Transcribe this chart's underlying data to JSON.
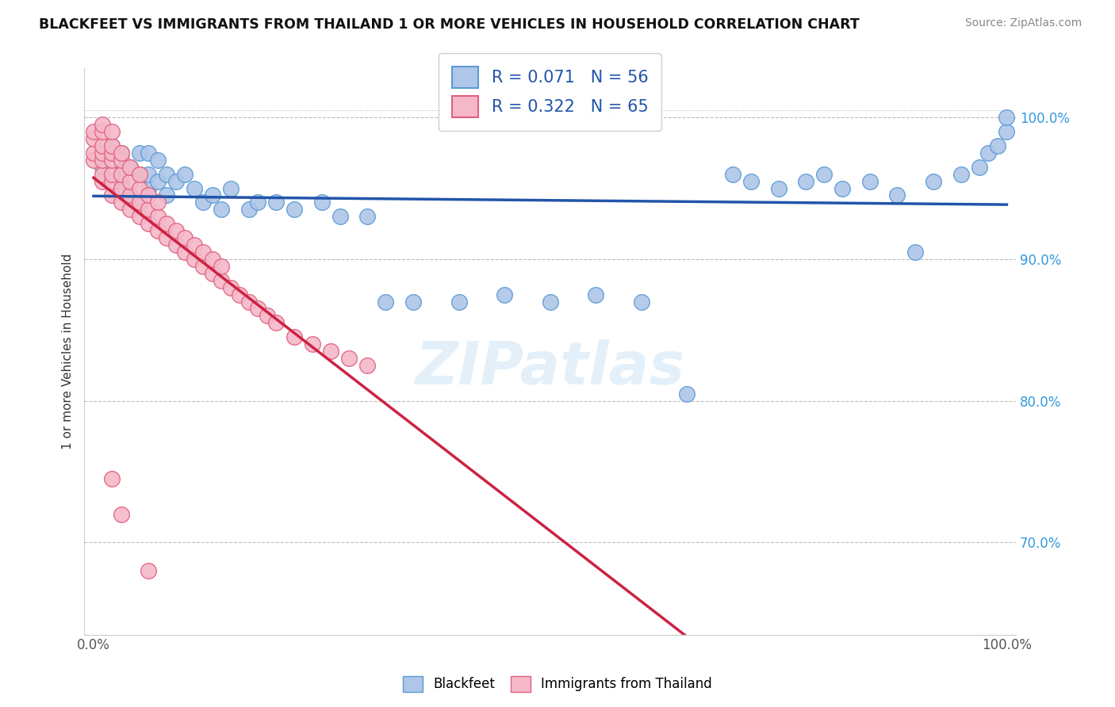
{
  "title": "BLACKFEET VS IMMIGRANTS FROM THAILAND 1 OR MORE VEHICLES IN HOUSEHOLD CORRELATION CHART",
  "source": "Source: ZipAtlas.com",
  "ylabel": "1 or more Vehicles in Household",
  "xlim": [
    -0.01,
    1.01
  ],
  "ylim": [
    0.635,
    1.035
  ],
  "xticks": [
    0.0,
    0.2,
    0.4,
    0.6,
    0.8,
    1.0
  ],
  "xticklabels": [
    "0.0%",
    "",
    "",
    "",
    "",
    "100.0%"
  ],
  "ytick_vals": [
    0.7,
    0.8,
    0.9,
    1.0
  ],
  "ytick_labels": [
    "70.0%",
    "80.0%",
    "90.0%",
    "100.0%"
  ],
  "ytick_grid_vals": [
    0.7,
    0.8,
    0.9,
    1.0
  ],
  "legend_line1": "R = 0.071   N = 56",
  "legend_line2": "R = 0.322   N = 65",
  "legend_label_blue": "Blackfeet",
  "legend_label_pink": "Immigrants from Thailand",
  "blue_color": "#aec6e8",
  "pink_color": "#f5b8c8",
  "blue_edge": "#5b9bd5",
  "pink_edge": "#e06080",
  "line_blue_color": "#2255aa",
  "line_pink_color": "#cc2244",
  "grid_color": "#bbbbbb",
  "blue_R": 0.071,
  "pink_R": 0.322,
  "blue_scatter_x": [
    0.01,
    0.02,
    0.02,
    0.03,
    0.03,
    0.03,
    0.04,
    0.04,
    0.05,
    0.05,
    0.05,
    0.06,
    0.06,
    0.06,
    0.07,
    0.07,
    0.08,
    0.08,
    0.09,
    0.1,
    0.11,
    0.12,
    0.13,
    0.14,
    0.15,
    0.17,
    0.18,
    0.2,
    0.22,
    0.25,
    0.27,
    0.3,
    0.32,
    0.35,
    0.4,
    0.45,
    0.5,
    0.55,
    0.6,
    0.7,
    0.72,
    0.75,
    0.78,
    0.8,
    0.82,
    0.85,
    0.88,
    0.9,
    0.92,
    0.95,
    0.97,
    0.98,
    0.99,
    1.0,
    1.0,
    0.65
  ],
  "blue_scatter_y": [
    0.965,
    0.975,
    0.98,
    0.955,
    0.965,
    0.975,
    0.945,
    0.965,
    0.94,
    0.96,
    0.975,
    0.95,
    0.96,
    0.975,
    0.955,
    0.97,
    0.945,
    0.96,
    0.955,
    0.96,
    0.95,
    0.94,
    0.945,
    0.935,
    0.95,
    0.935,
    0.94,
    0.94,
    0.935,
    0.94,
    0.93,
    0.93,
    0.87,
    0.87,
    0.87,
    0.875,
    0.87,
    0.875,
    0.87,
    0.96,
    0.955,
    0.95,
    0.955,
    0.96,
    0.95,
    0.955,
    0.945,
    0.905,
    0.955,
    0.96,
    0.965,
    0.975,
    0.98,
    0.99,
    1.0,
    0.805
  ],
  "pink_scatter_x": [
    0.0,
    0.0,
    0.0,
    0.0,
    0.01,
    0.01,
    0.01,
    0.01,
    0.01,
    0.01,
    0.01,
    0.02,
    0.02,
    0.02,
    0.02,
    0.02,
    0.02,
    0.02,
    0.03,
    0.03,
    0.03,
    0.03,
    0.03,
    0.04,
    0.04,
    0.04,
    0.04,
    0.05,
    0.05,
    0.05,
    0.05,
    0.06,
    0.06,
    0.06,
    0.07,
    0.07,
    0.07,
    0.08,
    0.08,
    0.09,
    0.09,
    0.1,
    0.1,
    0.11,
    0.11,
    0.12,
    0.12,
    0.13,
    0.13,
    0.14,
    0.14,
    0.15,
    0.16,
    0.17,
    0.18,
    0.19,
    0.2,
    0.22,
    0.24,
    0.26,
    0.28,
    0.3,
    0.02,
    0.03,
    0.06
  ],
  "pink_scatter_y": [
    0.97,
    0.975,
    0.985,
    0.99,
    0.955,
    0.96,
    0.97,
    0.975,
    0.98,
    0.99,
    0.995,
    0.945,
    0.955,
    0.96,
    0.97,
    0.975,
    0.98,
    0.99,
    0.94,
    0.95,
    0.96,
    0.97,
    0.975,
    0.935,
    0.945,
    0.955,
    0.965,
    0.93,
    0.94,
    0.95,
    0.96,
    0.925,
    0.935,
    0.945,
    0.92,
    0.93,
    0.94,
    0.915,
    0.925,
    0.91,
    0.92,
    0.905,
    0.915,
    0.9,
    0.91,
    0.895,
    0.905,
    0.89,
    0.9,
    0.885,
    0.895,
    0.88,
    0.875,
    0.87,
    0.865,
    0.86,
    0.855,
    0.845,
    0.84,
    0.835,
    0.83,
    0.825,
    0.745,
    0.72,
    0.68
  ]
}
